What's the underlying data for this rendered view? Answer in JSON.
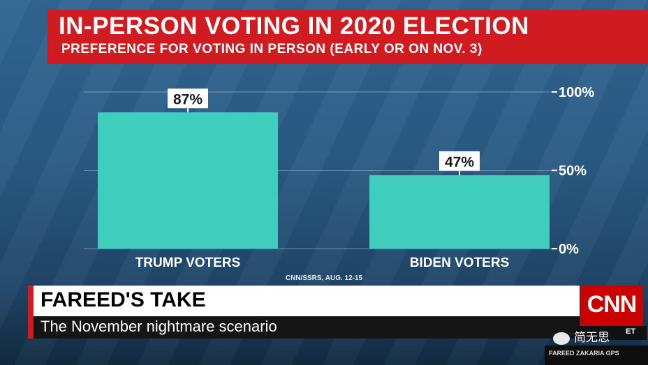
{
  "header": {
    "title": "IN-PERSON VOTING IN 2020 ELECTION",
    "subtitle": "PREFERENCE FOR VOTING IN PERSON (EARLY OR ON NOV. 3)"
  },
  "chart_data": {
    "type": "bar",
    "categories": [
      "TRUMP VOTERS",
      "BIDEN VOTERS"
    ],
    "values": [
      87,
      47
    ],
    "data_labels": [
      "87%",
      "47%"
    ],
    "ylim": [
      0,
      100
    ],
    "yticks": [
      0,
      50,
      100
    ],
    "ytick_labels": [
      "0%",
      "50%",
      "100%"
    ],
    "grid": true,
    "source": "CNN/SSRS, AUG. 12-15",
    "bar_color": "#3fcdbd"
  },
  "lower_third": {
    "title": "FAREED'S TAKE",
    "tagline": "The November nightmare scenario"
  },
  "network": {
    "logo": "CNN",
    "time_zone": "ET",
    "show": "FAREED ZAKARIA GPS"
  },
  "watermark": {
    "text": "简无思",
    "icon": "wechat-icon"
  },
  "colors": {
    "accent_red": "#d01c20",
    "background": "#2a5b84"
  }
}
